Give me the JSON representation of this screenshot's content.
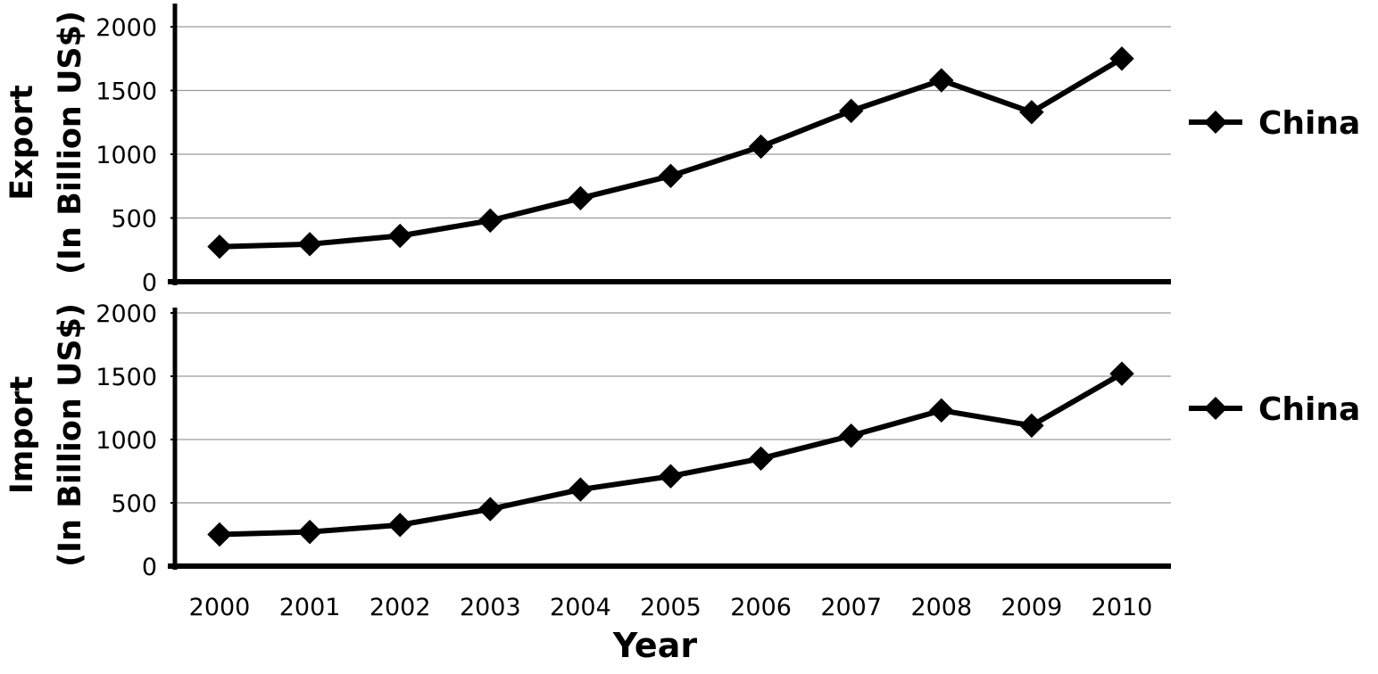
{
  "chart_data": {
    "type": "line",
    "x": [
      "2000",
      "2001",
      "2002",
      "2003",
      "2004",
      "2005",
      "2006",
      "2007",
      "2008",
      "2009",
      "2010"
    ],
    "xlabel": "Year",
    "panels": [
      {
        "ylabel_line1": "Export",
        "ylabel_line2": "(In Billion US$)",
        "ylim": [
          0,
          2000
        ],
        "yticks": [
          "0",
          "500",
          "1000",
          "1500",
          "2000"
        ],
        "grid": true,
        "legend_position": "right",
        "series": [
          {
            "name": "China",
            "values": [
              275,
              295,
              360,
              480,
              655,
              830,
              1060,
              1340,
              1580,
              1330,
              1750
            ]
          }
        ]
      },
      {
        "ylabel_line1": "Import",
        "ylabel_line2": "(In Billion US$)",
        "ylim": [
          0,
          2000
        ],
        "yticks": [
          "0",
          "500",
          "1000",
          "1500",
          "2000"
        ],
        "grid": true,
        "legend_position": "right",
        "series": [
          {
            "name": "China",
            "values": [
              250,
              270,
              325,
              450,
              605,
              710,
              850,
              1030,
              1230,
              1110,
              1520
            ]
          }
        ]
      }
    ],
    "line_color": "#000000",
    "grid_color": "#9a9a9a",
    "marker": "diamond"
  }
}
